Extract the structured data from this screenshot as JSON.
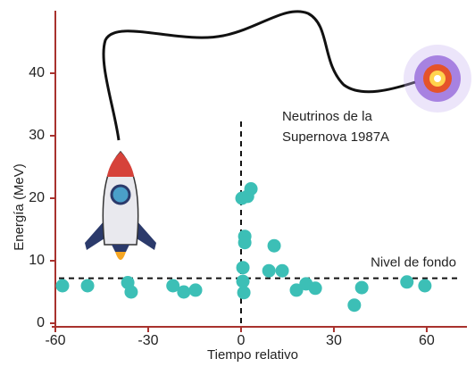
{
  "chart_data": {
    "type": "scatter",
    "x_label": "Tiempo relativo",
    "y_label": "Energía (MeV)",
    "x": [
      -57.7,
      -49.6,
      -36.6,
      -35.5,
      -22,
      -18.5,
      -14.7,
      0.3,
      2.1,
      3.2,
      1.2,
      1.2,
      0.6,
      0.6,
      0.9,
      10.7,
      9,
      13.3,
      17.9,
      21,
      24,
      36.6,
      39,
      53.6,
      59.4
    ],
    "values": [
      6,
      6,
      6.5,
      5,
      6,
      5,
      5.3,
      20,
      20.3,
      21.5,
      13.9,
      12.9,
      8.9,
      6.7,
      4.9,
      12.4,
      8.4,
      8.4,
      5.3,
      6.3,
      5.6,
      2.9,
      5.7,
      6.6,
      6
    ],
    "color": "#3cbfb6",
    "xlim": [
      -60,
      73
    ],
    "ylim": [
      0,
      50
    ],
    "xticks": [
      -60,
      -30,
      0,
      30,
      60
    ],
    "yticks": [
      0,
      10,
      20,
      30,
      40
    ],
    "axis_color": "#a8322e",
    "grid": false,
    "hlines": [
      {
        "y": 7.2,
        "label": "Nivel de fondo"
      }
    ],
    "vlines": [
      {
        "x": 0,
        "ymax": 33,
        "label": [
          "Neutrinos de la",
          "Supernova 1987A"
        ]
      }
    ]
  }
}
